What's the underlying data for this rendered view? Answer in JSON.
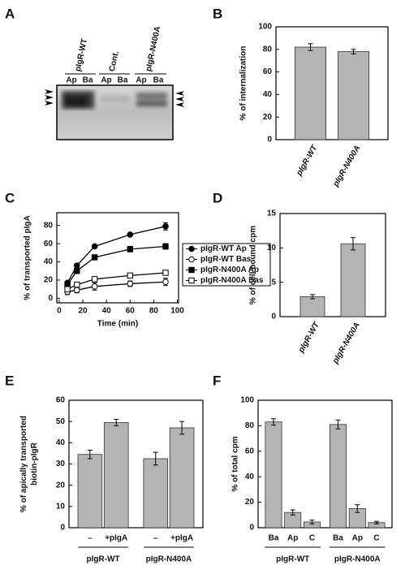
{
  "gel": {
    "label": "A",
    "lanes": [
      "pIgR-WT",
      "Cont.",
      "pIgR-N400A"
    ],
    "sublanes": [
      "Ap",
      "Ba",
      "Ap",
      "Ba",
      "Ap",
      "Ba"
    ]
  },
  "chart_data": [
    {
      "type": "bar",
      "label": "B",
      "ylabel": [
        "% of internalization"
      ],
      "categories": [
        "pIgR-WT",
        "pIgR-N400A"
      ],
      "values": [
        82,
        78
      ],
      "errors": [
        3,
        2
      ],
      "color": "#b4b4b4",
      "ylim": [
        0,
        100
      ],
      "yticks": [
        0,
        20,
        40,
        60,
        80,
        100
      ]
    },
    {
      "type": "line",
      "label": "C",
      "ylabel": [
        "% of transported pIgA"
      ],
      "xlabel": "Time (min)",
      "x": [
        7,
        15,
        30,
        60,
        90
      ],
      "xlim": [
        -2,
        101
      ],
      "xticks": [
        0,
        20,
        40,
        60,
        80,
        100
      ],
      "ylim": [
        -5,
        94
      ],
      "yticks": [
        0,
        20,
        40,
        60,
        80
      ],
      "legend": "right",
      "series": [
        {
          "name": "pIgR-WT Ap",
          "color": "#000000",
          "marker": "circle",
          "filled": true,
          "values": [
            17,
            36,
            57,
            70,
            79
          ],
          "errors": [
            2,
            2,
            1,
            1,
            4
          ]
        },
        {
          "name": "pIgR-WT Bas",
          "color": "#000000",
          "marker": "circle",
          "filled": false,
          "values": [
            7,
            9,
            13,
            16,
            18
          ],
          "errors": [
            3,
            3,
            4,
            3,
            4
          ]
        },
        {
          "name": "pIgR-N400A Ap",
          "color": "#000000",
          "marker": "square",
          "filled": true,
          "values": [
            15,
            30,
            45,
            54,
            57
          ],
          "errors": [
            2,
            2,
            2,
            3,
            3
          ]
        },
        {
          "name": "pIgR-N400A Bas",
          "color": "#000000",
          "marker": "square",
          "filled": false,
          "values": [
            10,
            15,
            21,
            25,
            28
          ],
          "errors": [
            2,
            2,
            2,
            1,
            1
          ]
        }
      ]
    },
    {
      "type": "bar",
      "label": "D",
      "ylabel": [
        "% of cell bound cpm"
      ],
      "categories": [
        "pIgR-WT",
        "pIgR-N400A"
      ],
      "values": [
        2.9,
        10.6
      ],
      "errors": [
        0.3,
        0.9
      ],
      "color": "#b4b4b4",
      "ylim": [
        0,
        15
      ],
      "yticks": [
        0,
        5,
        10,
        15
      ]
    },
    {
      "type": "bar",
      "label": "E",
      "ylabel": [
        "% of apically transported",
        "biotin-pIgR"
      ],
      "categories": [
        "–",
        "+pIgA",
        "–",
        "+pIgA"
      ],
      "groups": [
        "pIgR-WT",
        "pIgR-N400A"
      ],
      "values": [
        34.5,
        49.5,
        32.5,
        47
      ],
      "errors": [
        2,
        1.5,
        3,
        3
      ],
      "color": "#b4b4b4",
      "ylim": [
        0,
        60
      ],
      "yticks": [
        0,
        10,
        20,
        30,
        40,
        50,
        60
      ]
    },
    {
      "type": "bar",
      "label": "F",
      "ylabel": [
        "% of total cpm"
      ],
      "categories": [
        "Ba",
        "Ap",
        "C",
        "Ba",
        "Ap",
        "C"
      ],
      "groups": [
        "pIgR-WT",
        "pIgR-N400A"
      ],
      "values": [
        83,
        12,
        4.5,
        81,
        15,
        4
      ],
      "errors": [
        2.5,
        2,
        1.5,
        3.5,
        3,
        1
      ],
      "color": "#b4b4b4",
      "ylim": [
        0,
        100
      ],
      "yticks": [
        0,
        20,
        40,
        60,
        80,
        100
      ]
    }
  ]
}
